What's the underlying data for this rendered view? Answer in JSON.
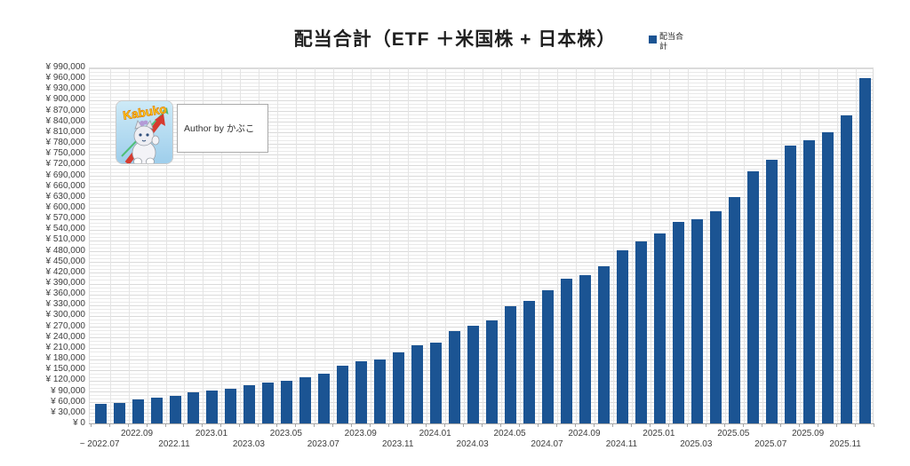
{
  "header": {
    "title": "配当合計（ETF ＋米国株 + 日本株）"
  },
  "legend": {
    "label": "配当合計",
    "swatch_color": "#1B5493"
  },
  "badge": {
    "mascot_name": "Kabuko",
    "author_label": "Author by かぶこ"
  },
  "chart_data": {
    "type": "bar",
    "title": "配当合計（ETF ＋米国株 + 日本株）",
    "series_name": "配当合計",
    "x": [
      "2022.07",
      "2022.08",
      "2022.09",
      "2022.10",
      "2022.11",
      "2022.12",
      "2023.01",
      "2023.02",
      "2023.03",
      "2023.04",
      "2023.05",
      "2023.06",
      "2023.07",
      "2023.08",
      "2023.09",
      "2023.10",
      "2023.11",
      "2023.12",
      "2024.01",
      "2024.02",
      "2024.03",
      "2024.04",
      "2024.05",
      "2024.06",
      "2024.07",
      "2024.08",
      "2024.09",
      "2024.10",
      "2024.11",
      "2024.12",
      "2025.01",
      "2025.02",
      "2025.03",
      "2025.04",
      "2025.05",
      "2025.06",
      "2025.07",
      "2025.08",
      "2025.09",
      "2025.10",
      "2025.11",
      "2025.12"
    ],
    "values": [
      58000,
      60000,
      70000,
      74000,
      79000,
      88000,
      95000,
      99000,
      109000,
      116000,
      122000,
      132000,
      141000,
      162000,
      175000,
      180000,
      201000,
      219000,
      227000,
      260000,
      275000,
      290000,
      329000,
      344000,
      372000,
      405000,
      414000,
      440000,
      484000,
      509000,
      532000,
      562000,
      571000,
      592000,
      633000,
      704000,
      736000,
      775000,
      790000,
      813000,
      860000,
      962000
    ],
    "ylim": [
      0,
      990000
    ],
    "ytick_step": 30000,
    "minor_grid_step": 10000,
    "y_prefix": "¥ ",
    "y_zero_label": "¥ 0",
    "xtick_every_months": 2,
    "first_xtick_prefix": "~ ",
    "bar_color": "#1B5493",
    "grid": true,
    "legend_position": "top-right"
  }
}
